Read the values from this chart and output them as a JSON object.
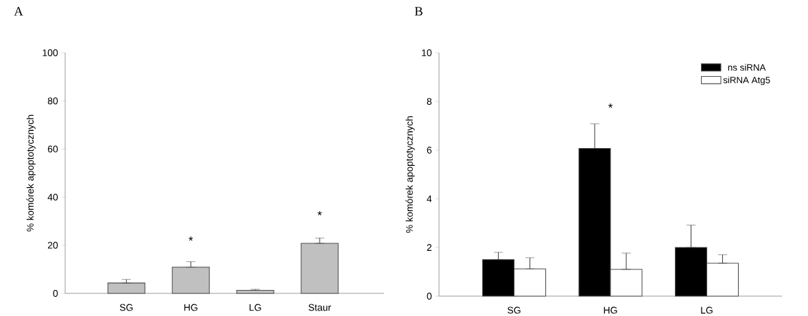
{
  "chart_data": [
    {
      "type": "bar",
      "title": "A",
      "ylabel": "% komórek apoptotycznych",
      "categories": [
        "SG",
        "HG",
        "LG",
        "Staur"
      ],
      "values": [
        4.3,
        10.9,
        1.3,
        20.8
      ],
      "errors": [
        [
          4.3,
          5.8
        ],
        [
          10.9,
          13.2
        ],
        [
          1.3,
          1.7
        ],
        [
          20.8,
          23.0
        ]
      ],
      "color": "#c0c0c0",
      "ylim": [
        0,
        100
      ],
      "yticks": [
        0,
        20,
        40,
        60,
        80,
        100
      ],
      "annotations": [
        "*",
        "*"
      ]
    },
    {
      "type": "bar",
      "title": "B",
      "ylabel": "% komórek apoptotycznych",
      "categories": [
        "SG",
        "HG",
        "LG"
      ],
      "ylim": [
        0,
        10
      ],
      "yticks": [
        0,
        2,
        4,
        6,
        8,
        10
      ],
      "legend": "top right",
      "series": [
        {
          "name": "ns siRNA",
          "color": "#000000",
          "values": [
            1.5,
            6.07,
            2.0
          ],
          "errors": [
            [
              1.5,
              1.8
            ],
            [
              6.07,
              7.08
            ],
            [
              2.0,
              2.92
            ]
          ]
        },
        {
          "name": "siRNA Atg5",
          "color": "#ffffff",
          "values": [
            1.12,
            1.1,
            1.35
          ],
          "errors": [
            [
              1.12,
              1.58
            ],
            [
              1.1,
              1.77
            ],
            [
              1.35,
              1.7
            ]
          ]
        }
      ],
      "annotations": [
        "*"
      ]
    }
  ]
}
